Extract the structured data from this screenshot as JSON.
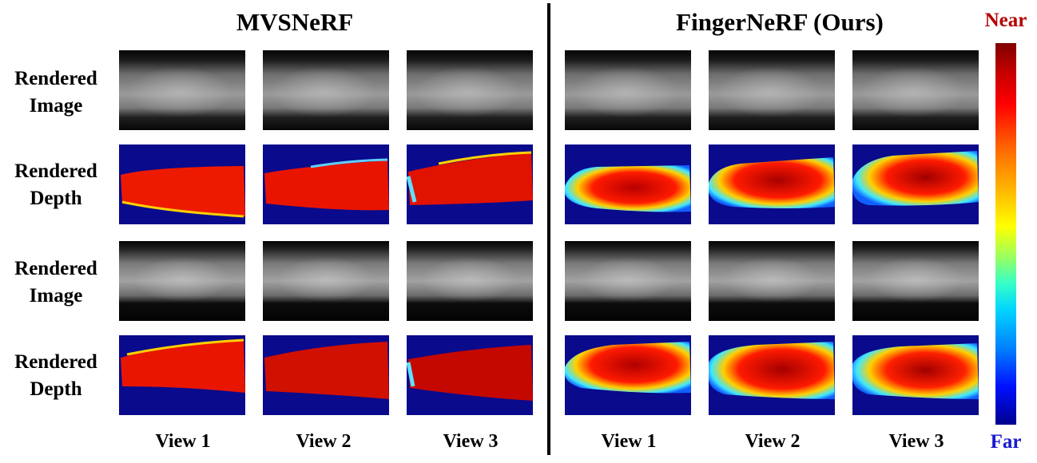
{
  "titles": {
    "left": "MVSNeRF",
    "right": "FingerNeRF (Ours)"
  },
  "row_labels": [
    [
      "Rendered",
      "Image"
    ],
    [
      "Rendered",
      "Depth"
    ],
    [
      "Rendered",
      "Image"
    ],
    [
      "Rendered",
      "Depth"
    ]
  ],
  "column_labels": [
    "View 1",
    "View 2",
    "View 3",
    "View 1",
    "View 2",
    "View 3"
  ],
  "colorbar": {
    "top_label": "Near",
    "bottom_label": "Far"
  },
  "colors": {
    "near": "#b30000",
    "far": "#1a1acc",
    "depth_background": "#0a0a8c"
  }
}
